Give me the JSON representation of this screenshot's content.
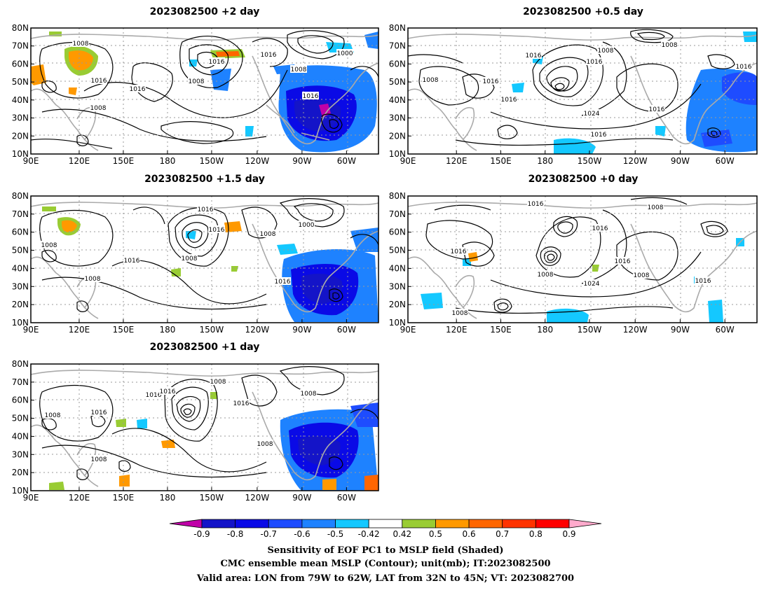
{
  "panels": [
    {
      "id": "p2",
      "title": "2023082500 +2 day"
    },
    {
      "id": "p05",
      "title": "2023082500 +0.5 day"
    },
    {
      "id": "p15",
      "title": "2023082500 +1.5 day"
    },
    {
      "id": "p0",
      "title": "2023082500 +0 day"
    },
    {
      "id": "p1",
      "title": "2023082500 +1 day"
    }
  ],
  "axes": {
    "lat_ticks": [
      "10N",
      "20N",
      "30N",
      "40N",
      "50N",
      "60N",
      "70N",
      "80N"
    ],
    "lon_ticks": [
      "90E",
      "120E",
      "150E",
      "180",
      "150W",
      "120W",
      "90W",
      "60W"
    ]
  },
  "colorbar": {
    "ticks": [
      "-0.9",
      "-0.8",
      "-0.7",
      "-0.6",
      "-0.5",
      "-0.42",
      "0.42",
      "0.5",
      "0.6",
      "0.7",
      "0.8",
      "0.9"
    ],
    "colors": [
      "#c000a8",
      "#1414c8",
      "#0a0ae6",
      "#1e4cff",
      "#1e82ff",
      "#14c8ff",
      "#ffffff",
      "#99cc33",
      "#ff9900",
      "#ff6600",
      "#ff3300",
      "#ff0000",
      "#ffaacc"
    ]
  },
  "contour_labels": {
    "p2": [
      "1008",
      "1016",
      "1016",
      "1000",
      "1008",
      "1016",
      "1016",
      "1016",
      "1008",
      "1008"
    ],
    "p05": [
      "1016",
      "1008",
      "1008",
      "1016",
      "1016",
      "1016",
      "1024",
      "1016",
      "1008",
      "1016",
      "1016"
    ],
    "p15": [
      "1016",
      "1016",
      "1008",
      "1000",
      "1008",
      "1016",
      "1008",
      "1008",
      "1016"
    ],
    "p0": [
      "1016",
      "1008",
      "1016",
      "1016",
      "1008",
      "1024",
      "1016",
      "1008",
      "1016",
      "1008"
    ],
    "p1": [
      "1016",
      "1016",
      "1008",
      "1016",
      "1008",
      "1008",
      "1016",
      "1008",
      "1008"
    ]
  },
  "caption": {
    "line1": "Sensitivity of EOF PC1 to MSLP field (Shaded)",
    "line2": "CMC ensemble mean MSLP (Contour); unit(mb); IT:2023082500",
    "line3": "Valid area: LON from 79W to 62W, LAT from 32N to 45N; VT: 2023082700"
  }
}
